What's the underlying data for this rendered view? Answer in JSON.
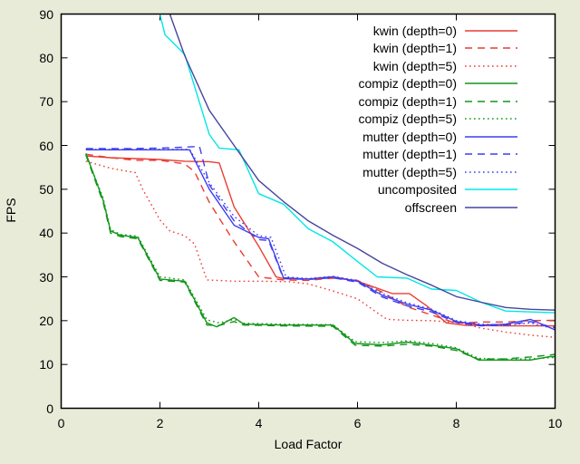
{
  "title": "",
  "chart_data": {
    "type": "line",
    "title": "",
    "xlabel": "Load Factor",
    "ylabel": "FPS",
    "x_axis": {
      "min": 0,
      "max": 10,
      "ticks": [
        0,
        2,
        4,
        6,
        8,
        10
      ]
    },
    "y_axis": {
      "min": 0,
      "max": 90,
      "ticks": [
        0,
        10,
        20,
        30,
        40,
        50,
        60,
        70,
        80,
        90
      ]
    },
    "grid": "off",
    "legend_position": "top-right-inside",
    "colors": {
      "kwin": "#e93d33",
      "compiz": "#12961a",
      "mutter": "#3d3df2",
      "uncomposited": "#00e7e7",
      "offscreen": "#45459e",
      "frame": "#000000",
      "plot_background": "#ffffff",
      "page_background": "#e9ebd9"
    },
    "series": [
      {
        "key": "kwin-depth-0",
        "name": "kwin (depth=0)",
        "color": "#e93d33",
        "style": "solid",
        "points": [
          [
            0.5,
            57.6
          ],
          [
            1,
            57.2
          ],
          [
            1.5,
            57
          ],
          [
            2,
            56.8
          ],
          [
            2.5,
            56.4
          ],
          [
            3,
            56.3
          ],
          [
            3.2,
            56
          ],
          [
            3.5,
            46
          ],
          [
            4,
            37
          ],
          [
            4.35,
            30
          ],
          [
            4.5,
            29.6
          ],
          [
            5,
            29.5
          ],
          [
            5.5,
            30
          ],
          [
            6,
            29
          ],
          [
            6.7,
            26.2
          ],
          [
            7.05,
            26.2
          ],
          [
            7.4,
            23.4
          ],
          [
            7.8,
            19.5
          ],
          [
            8.2,
            18.9
          ],
          [
            9,
            18.8
          ],
          [
            9.5,
            18.8
          ],
          [
            10,
            18.8
          ]
        ]
      },
      {
        "key": "kwin-depth-1",
        "name": "kwin (depth=1)",
        "color": "#e93d33",
        "style": "dashed",
        "points": [
          [
            0.5,
            58
          ],
          [
            1,
            57.2
          ],
          [
            1.5,
            56.6
          ],
          [
            2,
            56.6
          ],
          [
            2.5,
            55.8
          ],
          [
            2.7,
            54
          ],
          [
            3,
            47
          ],
          [
            3.5,
            38
          ],
          [
            4,
            30
          ],
          [
            4.5,
            29.3
          ],
          [
            5,
            29.2
          ],
          [
            5.5,
            29.7
          ],
          [
            6,
            29.2
          ],
          [
            6.5,
            26.5
          ],
          [
            7,
            23.2
          ],
          [
            7.5,
            21.3
          ],
          [
            8,
            19.4
          ],
          [
            8.5,
            19.7
          ],
          [
            9,
            19.7
          ],
          [
            9.5,
            20
          ],
          [
            10,
            20.1
          ]
        ]
      },
      {
        "key": "kwin-depth-5",
        "name": "kwin (depth=5)",
        "color": "#e93d33",
        "style": "dotted",
        "points": [
          [
            0.5,
            56.4
          ],
          [
            1,
            54.8
          ],
          [
            1.5,
            53.8
          ],
          [
            1.65,
            50
          ],
          [
            2,
            43
          ],
          [
            2.2,
            40.5
          ],
          [
            2.5,
            39.4
          ],
          [
            2.7,
            37.5
          ],
          [
            2.95,
            29.3
          ],
          [
            3.5,
            29
          ],
          [
            4,
            29
          ],
          [
            4.6,
            28.9
          ],
          [
            5,
            28.4
          ],
          [
            5.5,
            26.8
          ],
          [
            6,
            25
          ],
          [
            6.45,
            21.4
          ],
          [
            6.6,
            20.3
          ],
          [
            7,
            20.1
          ],
          [
            7.5,
            20
          ],
          [
            8.1,
            19.5
          ],
          [
            8.5,
            18.3
          ],
          [
            9,
            17.4
          ],
          [
            9.5,
            16.7
          ],
          [
            10,
            16.2
          ]
        ]
      },
      {
        "key": "compiz-depth-0",
        "name": "compiz (depth=0)",
        "color": "#12961a",
        "style": "solid",
        "points": [
          [
            0.5,
            58.2
          ],
          [
            0.85,
            47.5
          ],
          [
            1,
            40.5
          ],
          [
            1.2,
            39.5
          ],
          [
            1.55,
            39
          ],
          [
            2,
            29.5
          ],
          [
            2.5,
            29
          ],
          [
            2.95,
            19.5
          ],
          [
            3.15,
            18.6
          ],
          [
            3.5,
            20.7
          ],
          [
            3.7,
            19.2
          ],
          [
            4.5,
            19
          ],
          [
            5.5,
            19
          ],
          [
            5.95,
            14.8
          ],
          [
            6.5,
            14.5
          ],
          [
            7,
            15.1
          ],
          [
            7.5,
            14.4
          ],
          [
            8,
            13.6
          ],
          [
            8.45,
            11
          ],
          [
            9,
            11
          ],
          [
            9.5,
            11
          ],
          [
            9.9,
            11.8
          ],
          [
            10,
            11.8
          ]
        ]
      },
      {
        "key": "compiz-depth-1",
        "name": "compiz (depth=1)",
        "color": "#12961a",
        "style": "dashed",
        "points": [
          [
            0.5,
            57.8
          ],
          [
            0.85,
            47
          ],
          [
            1,
            40
          ],
          [
            1.2,
            39.2
          ],
          [
            1.55,
            38.7
          ],
          [
            2,
            29.2
          ],
          [
            2.5,
            28.8
          ],
          [
            2.95,
            19
          ],
          [
            3.2,
            18.9
          ],
          [
            3.5,
            19.8
          ],
          [
            3.7,
            19
          ],
          [
            4.5,
            18.8
          ],
          [
            5.5,
            18.7
          ],
          [
            5.95,
            14.4
          ],
          [
            6.5,
            14.2
          ],
          [
            7,
            14.6
          ],
          [
            7.5,
            14.2
          ],
          [
            8,
            13.2
          ],
          [
            8.45,
            11.2
          ],
          [
            9,
            11.3
          ],
          [
            9.5,
            11.7
          ],
          [
            10,
            12.3
          ]
        ]
      },
      {
        "key": "compiz-depth-5",
        "name": "compiz (depth=5)",
        "color": "#12961a",
        "style": "dotted",
        "points": [
          [
            0.5,
            58
          ],
          [
            0.85,
            48
          ],
          [
            1,
            40.8
          ],
          [
            1.2,
            39.7
          ],
          [
            1.55,
            39.3
          ],
          [
            2,
            30
          ],
          [
            2.5,
            29.3
          ],
          [
            2.95,
            20.2
          ],
          [
            3.2,
            19.5
          ],
          [
            3.5,
            20.3
          ],
          [
            3.7,
            19.4
          ],
          [
            4.5,
            19.2
          ],
          [
            5.5,
            19.1
          ],
          [
            5.95,
            15.2
          ],
          [
            6.5,
            15
          ],
          [
            7,
            15.4
          ],
          [
            7.5,
            14.8
          ],
          [
            8,
            13.8
          ],
          [
            8.45,
            11.4
          ],
          [
            9,
            11.2
          ],
          [
            9.5,
            11.3
          ],
          [
            10,
            11.6
          ]
        ]
      },
      {
        "key": "mutter-depth-0",
        "name": "mutter (depth=0)",
        "color": "#3d3df2",
        "style": "solid",
        "points": [
          [
            0.5,
            59
          ],
          [
            1,
            59
          ],
          [
            1.5,
            59
          ],
          [
            2,
            59
          ],
          [
            2.6,
            59
          ],
          [
            3,
            50
          ],
          [
            3.5,
            41.8
          ],
          [
            4,
            39
          ],
          [
            4.2,
            38.7
          ],
          [
            4.5,
            29.8
          ],
          [
            5,
            29.5
          ],
          [
            5.5,
            30
          ],
          [
            6,
            29
          ],
          [
            6.5,
            25.8
          ],
          [
            7,
            23.8
          ],
          [
            7.5,
            22.4
          ],
          [
            8,
            19.8
          ],
          [
            8.5,
            19
          ],
          [
            9,
            19.2
          ],
          [
            9.5,
            20.3
          ],
          [
            10,
            17.9
          ]
        ]
      },
      {
        "key": "mutter-depth-1",
        "name": "mutter (depth=1)",
        "color": "#3d3df2",
        "style": "dashed",
        "points": [
          [
            0.5,
            59.3
          ],
          [
            1,
            59.3
          ],
          [
            1.5,
            59.3
          ],
          [
            2,
            59.4
          ],
          [
            2.5,
            59.6
          ],
          [
            2.8,
            59.8
          ],
          [
            3,
            51
          ],
          [
            3.5,
            42.8
          ],
          [
            4,
            38.5
          ],
          [
            4.2,
            38.3
          ],
          [
            4.5,
            29.6
          ],
          [
            5,
            29.4
          ],
          [
            5.5,
            29.8
          ],
          [
            6,
            28.8
          ],
          [
            6.5,
            25.4
          ],
          [
            7,
            23.4
          ],
          [
            7.5,
            22
          ],
          [
            8,
            19.6
          ],
          [
            8.5,
            18.8
          ],
          [
            9,
            19
          ],
          [
            9.5,
            19.8
          ],
          [
            10,
            18.4
          ]
        ]
      },
      {
        "key": "mutter-depth-5",
        "name": "mutter (depth=5)",
        "color": "#3d3df2",
        "style": "dotted",
        "points": [
          [
            0.5,
            59.1
          ],
          [
            1,
            59.1
          ],
          [
            1.5,
            59.1
          ],
          [
            2,
            59.1
          ],
          [
            2.6,
            59.1
          ],
          [
            3,
            51.5
          ],
          [
            3.5,
            43.8
          ],
          [
            4,
            39.4
          ],
          [
            4.25,
            39
          ],
          [
            4.55,
            30
          ],
          [
            5,
            29.6
          ],
          [
            5.5,
            30.1
          ],
          [
            6,
            29.2
          ],
          [
            6.5,
            26.2
          ],
          [
            7,
            24.1
          ],
          [
            7.5,
            22.6
          ],
          [
            8,
            20
          ],
          [
            8.5,
            19.2
          ],
          [
            9,
            19
          ],
          [
            9.5,
            19.5
          ],
          [
            10,
            18.1
          ]
        ]
      },
      {
        "key": "uncomposited",
        "name": "uncomposited",
        "color": "#00e7e7",
        "style": "solid",
        "points": [
          [
            2,
            90
          ],
          [
            2.1,
            85.3
          ],
          [
            2.5,
            80.8
          ],
          [
            3,
            62.5
          ],
          [
            3.2,
            59.4
          ],
          [
            3.6,
            59
          ],
          [
            4,
            49
          ],
          [
            4.5,
            46.6
          ],
          [
            5,
            41
          ],
          [
            5.5,
            38
          ],
          [
            6,
            33.5
          ],
          [
            6.4,
            30
          ],
          [
            7,
            29.7
          ],
          [
            7.5,
            27.2
          ],
          [
            8,
            26.9
          ],
          [
            8.5,
            24.2
          ],
          [
            9,
            22.2
          ],
          [
            9.5,
            22
          ],
          [
            10,
            21.8
          ]
        ]
      },
      {
        "key": "offscreen",
        "name": "offscreen",
        "color": "#45459e",
        "style": "solid",
        "points": [
          [
            2.2,
            90
          ],
          [
            2.5,
            80.5
          ],
          [
            3,
            68
          ],
          [
            3.5,
            60
          ],
          [
            4,
            52
          ],
          [
            4.5,
            47.2
          ],
          [
            5,
            42.8
          ],
          [
            5.5,
            39.5
          ],
          [
            6,
            36.5
          ],
          [
            6.5,
            33.1
          ],
          [
            7,
            30.5
          ],
          [
            7.5,
            28.1
          ],
          [
            8,
            25.5
          ],
          [
            8.5,
            24.2
          ],
          [
            9,
            23
          ],
          [
            9.5,
            22.6
          ],
          [
            10,
            22.4
          ]
        ]
      }
    ]
  }
}
